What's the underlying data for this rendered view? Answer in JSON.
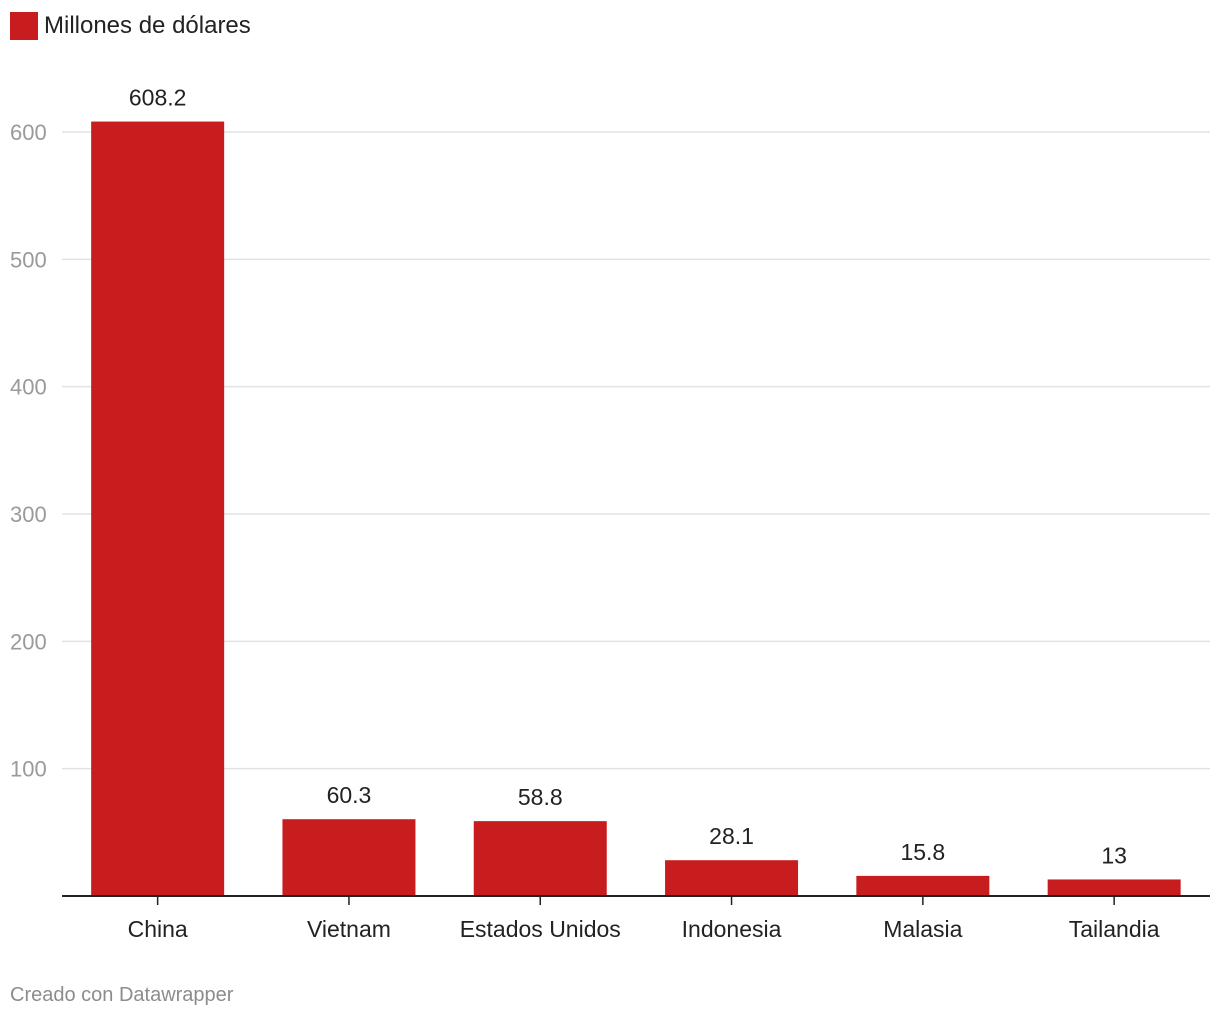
{
  "colors": {
    "bar": "#c81d1e",
    "grid": "#e2e2e2",
    "baseline": "#222222",
    "tick_text": "#9a9a9a"
  },
  "chart_data": {
    "type": "bar",
    "title": "",
    "legend": [
      "Millones de dólares"
    ],
    "categories": [
      "China",
      "Vietnam",
      "Estados Unidos",
      "Indonesia",
      "Malasia",
      "Tailandia"
    ],
    "series": [
      {
        "name": "Millones de dólares",
        "values": [
          608.2,
          60.3,
          58.8,
          28.1,
          15.8,
          13
        ]
      }
    ],
    "value_labels": [
      "608.2",
      "60.3",
      "58.8",
      "28.1",
      "15.8",
      "13"
    ],
    "xlabel": "",
    "ylabel": "",
    "ylim": [
      0,
      600
    ],
    "yticks": [
      100,
      200,
      300,
      400,
      500,
      600
    ],
    "grid": true,
    "legend_position": "top-left"
  },
  "footer": {
    "credit": "Creado con Datawrapper"
  }
}
